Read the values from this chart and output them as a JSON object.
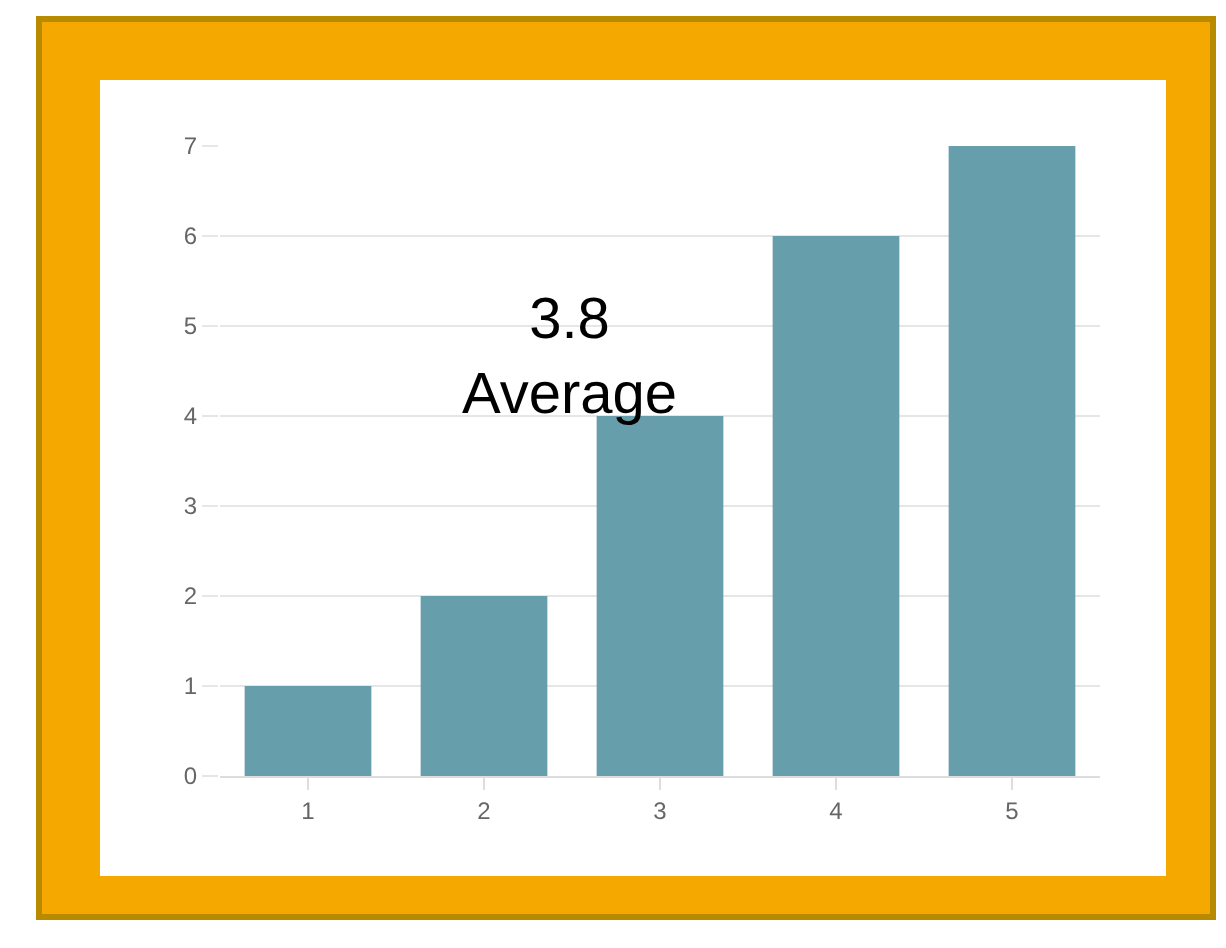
{
  "chart_data": {
    "type": "bar",
    "categories": [
      "1",
      "2",
      "3",
      "4",
      "5"
    ],
    "values": [
      1,
      2,
      4,
      6,
      7
    ],
    "color": "#669fab",
    "ylim": [
      0,
      7
    ],
    "yticks": [
      0,
      1,
      2,
      3,
      4,
      5,
      6,
      7
    ],
    "grid": "y",
    "annotations": [
      "3.8\nAverage"
    ]
  }
}
